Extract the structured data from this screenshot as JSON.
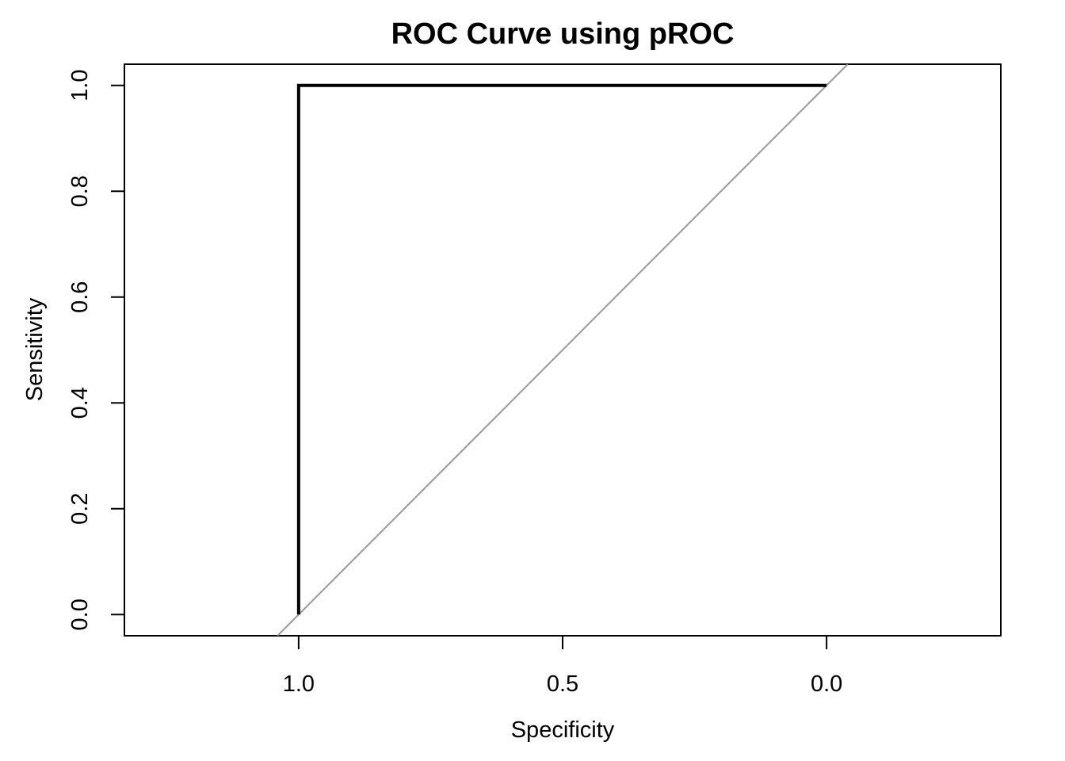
{
  "chart_data": {
    "type": "line",
    "title": "ROC Curve using pROC",
    "xlabel": "Specificity",
    "ylabel": "Sensitivity",
    "x_reversed": true,
    "xlim": [
      1.33,
      -0.33
    ],
    "ylim": [
      -0.04,
      1.04
    ],
    "xticks": [
      {
        "value": 1.0,
        "label": "1.0"
      },
      {
        "value": 0.5,
        "label": "0.5"
      },
      {
        "value": 0.0,
        "label": "0.0"
      }
    ],
    "yticks": [
      {
        "value": 0.0,
        "label": "0.0"
      },
      {
        "value": 0.2,
        "label": "0.2"
      },
      {
        "value": 0.4,
        "label": "0.4"
      },
      {
        "value": 0.6,
        "label": "0.6"
      },
      {
        "value": 0.8,
        "label": "0.8"
      },
      {
        "value": 1.0,
        "label": "1.0"
      }
    ],
    "series": [
      {
        "x": [
          1.0,
          1.0,
          0.0
        ],
        "y": [
          0.0,
          1.0,
          1.0
        ],
        "color": "#000000"
      }
    ],
    "reference_line": {
      "description": "diagonal",
      "x": [
        1.04,
        -0.04
      ],
      "y": [
        -0.04,
        1.04
      ],
      "color": "#999999"
    },
    "grid": false,
    "legend": "none"
  }
}
